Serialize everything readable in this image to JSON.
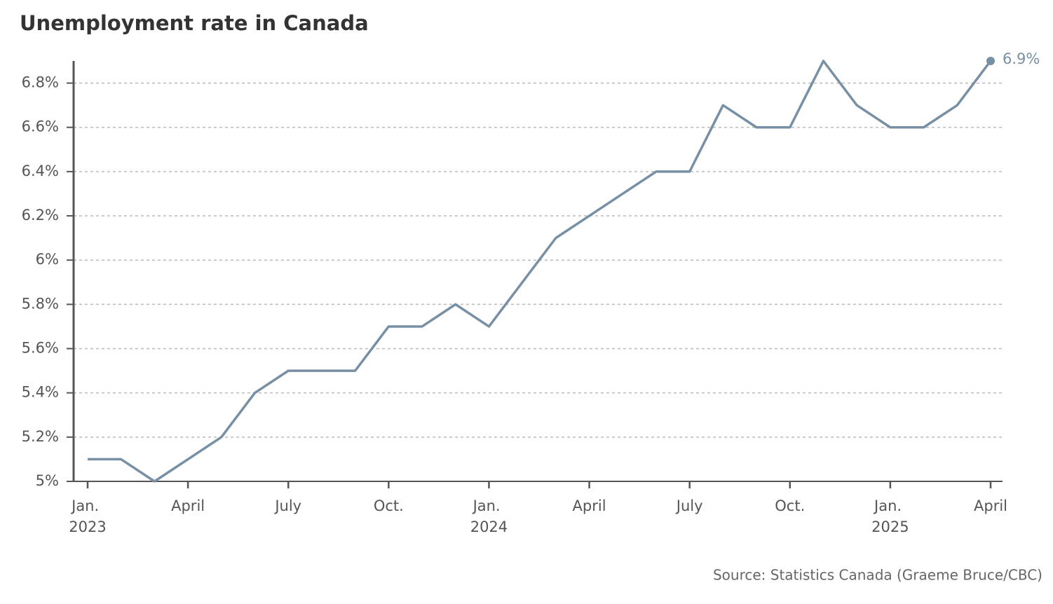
{
  "chart_data": {
    "type": "line",
    "title": "Unemployment rate in Canada",
    "source": "Source: Statistics Canada (Graeme Bruce/CBC)",
    "categories": [
      "Jan. 2023",
      null,
      null,
      "April",
      null,
      null,
      "July",
      null,
      null,
      "Oct.",
      null,
      null,
      "Jan. 2024",
      null,
      null,
      "April",
      null,
      null,
      "July",
      null,
      null,
      "Oct.",
      null,
      null,
      "Jan. 2025",
      null,
      null,
      "April"
    ],
    "series": [
      {
        "name": "Unemployment rate",
        "color": "#7890a5",
        "values": [
          5.1,
          5.1,
          5.0,
          5.1,
          5.2,
          5.4,
          5.5,
          5.5,
          5.5,
          5.7,
          5.7,
          5.8,
          5.7,
          5.9,
          6.1,
          6.2,
          6.3,
          6.4,
          6.4,
          6.7,
          6.6,
          6.6,
          6.9,
          6.7,
          6.6,
          6.6,
          6.7,
          6.9
        ],
        "value_labels": [
          null,
          null,
          null,
          null,
          null,
          null,
          null,
          null,
          null,
          null,
          null,
          null,
          null,
          null,
          null,
          null,
          null,
          null,
          null,
          null,
          null,
          null,
          null,
          null,
          null,
          null,
          null,
          "6.9%"
        ]
      }
    ],
    "ylim": [
      5,
      6.9
    ],
    "yticks": [
      {
        "value": 5,
        "label": "5%"
      },
      {
        "value": 5.2,
        "label": "5.2%"
      },
      {
        "value": 5.4,
        "label": "5.4%"
      },
      {
        "value": 5.6,
        "label": "5.6%"
      },
      {
        "value": 5.8,
        "label": "5.8%"
      },
      {
        "value": 6,
        "label": "6%"
      },
      {
        "value": 6.2,
        "label": "6.2%"
      },
      {
        "value": 6.4,
        "label": "6.4%"
      },
      {
        "value": 6.6,
        "label": "6.6%"
      },
      {
        "value": 6.8,
        "label": "6.8%"
      }
    ],
    "grid": true
  }
}
